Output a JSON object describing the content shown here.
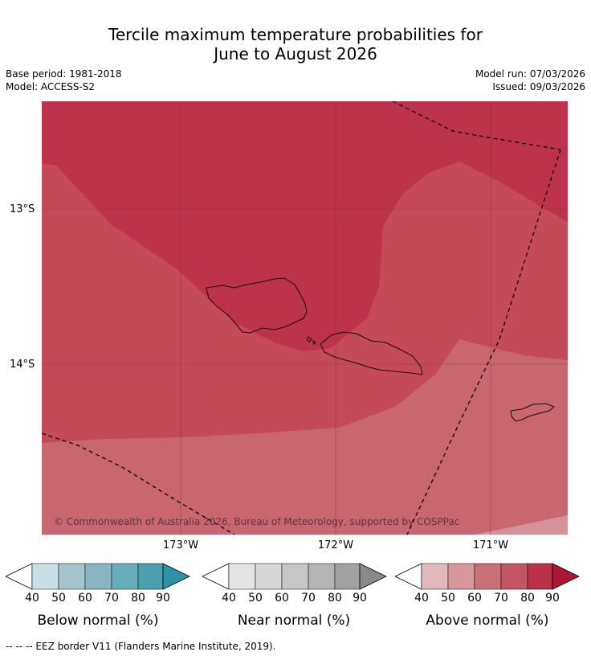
{
  "title": {
    "line1": "Tercile maximum temperature probabilities for",
    "line2": "June to August 2026"
  },
  "meta": {
    "base_period": "Base period: 1981-2018",
    "model": "Model: ACCESS-S2",
    "model_run": "Model run: 07/03/2026",
    "issued": "Issued: 09/03/2026"
  },
  "map": {
    "lat_labels": [
      "13°S",
      "14°S"
    ],
    "lon_labels": [
      "173°W",
      "172°W",
      "171°W"
    ],
    "credit": "© Commonwealth of Australia 2026, Bureau of Meteorology, supported by COSPPac",
    "regions": [
      {
        "name": "above-80-90",
        "color": "#bd334b"
      },
      {
        "name": "above-70-80",
        "color": "#c44a59"
      },
      {
        "name": "above-60-70",
        "color": "#c96771"
      },
      {
        "name": "above-50-60",
        "color": "#d4929a"
      }
    ],
    "eez_color": "#000000"
  },
  "legends": [
    {
      "title": "Below normal (%)",
      "ticks": [
        "40",
        "50",
        "60",
        "70",
        "80",
        "90"
      ],
      "colors": [
        "#c8dfe6",
        "#a4c5cc",
        "#87b5c1",
        "#69acbb",
        "#4aa0b0",
        "#2f93a8"
      ]
    },
    {
      "title": "Near normal (%)",
      "ticks": [
        "40",
        "50",
        "60",
        "70",
        "80",
        "90"
      ],
      "colors": [
        "#e4e4e4",
        "#d7d7d7",
        "#c7c7c7",
        "#b4b4b4",
        "#a1a1a1",
        "#898989"
      ]
    },
    {
      "title": "Above normal (%)",
      "ticks": [
        "40",
        "50",
        "60",
        "70",
        "80",
        "90"
      ],
      "colors": [
        "#e3b9bd",
        "#d7969c",
        "#ca7178",
        "#c45664",
        "#bb3148",
        "#ab1637"
      ]
    }
  ],
  "footnote": "--  --  -- EEZ border V11 (Flanders Marine Institute, 2019)."
}
